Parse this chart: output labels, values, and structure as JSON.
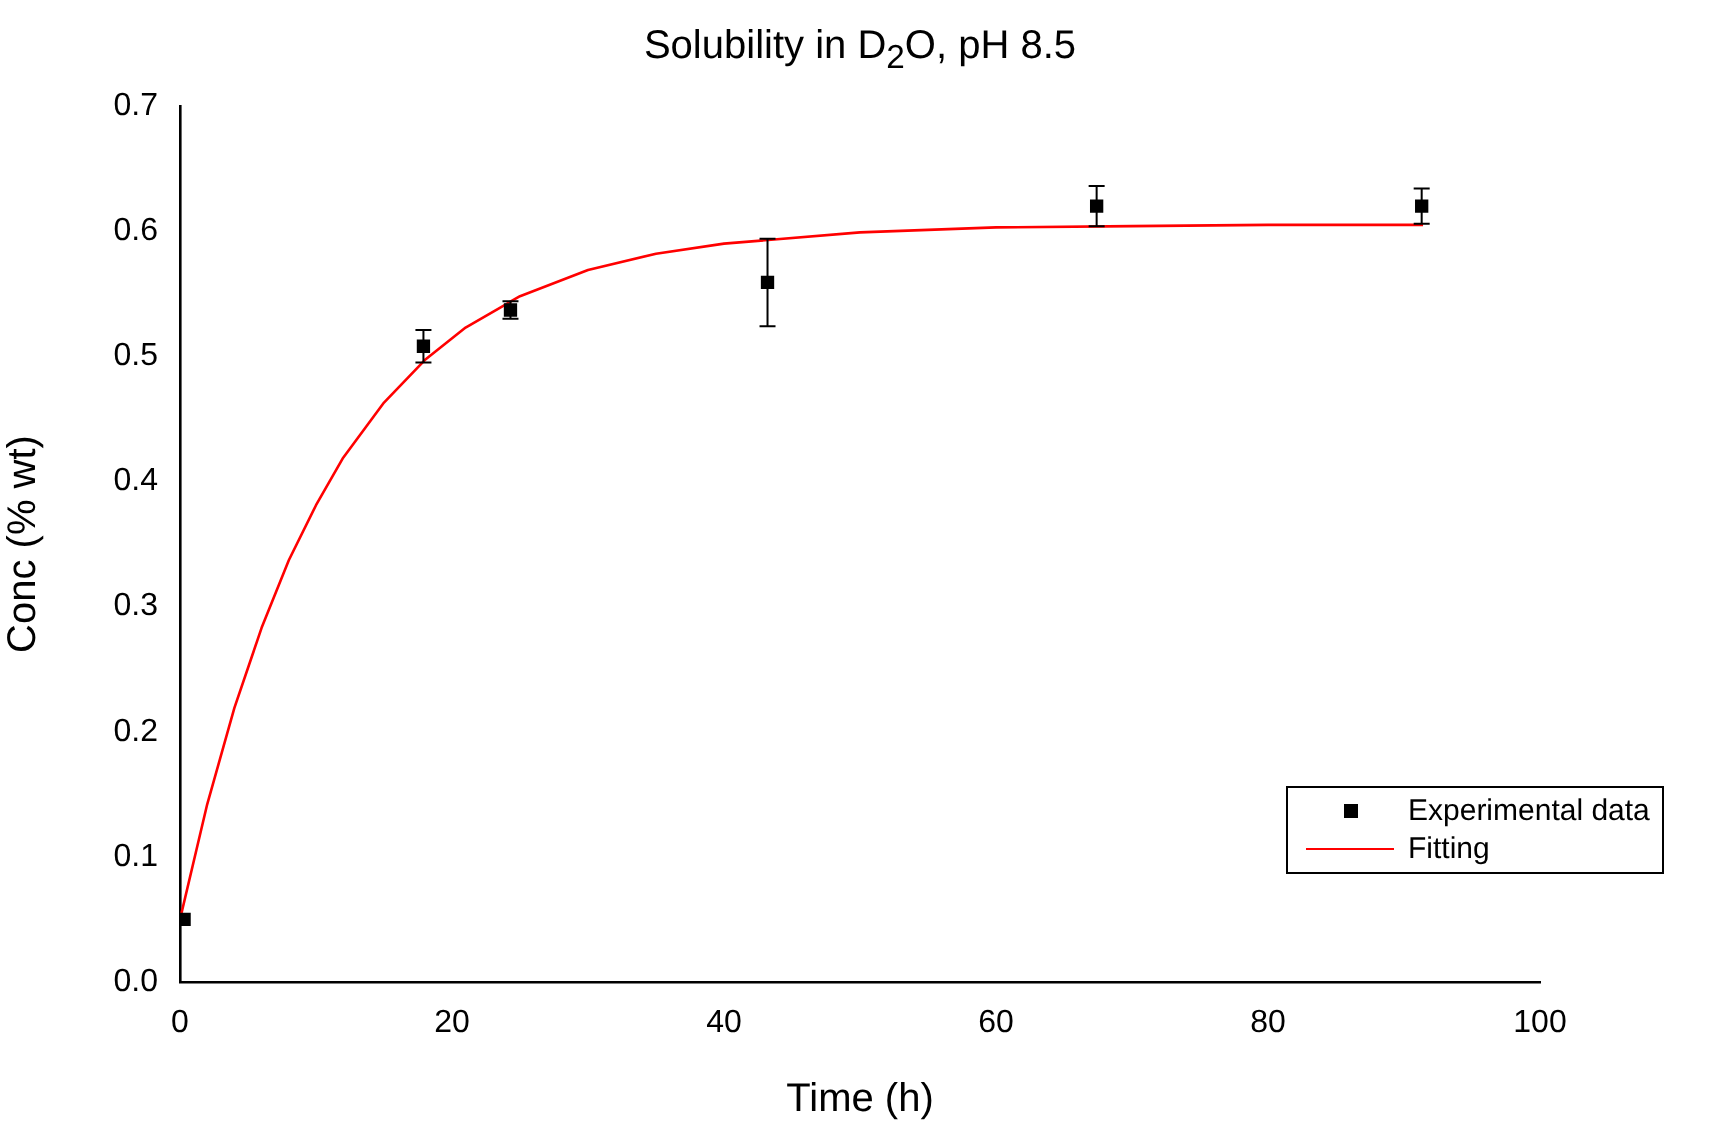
{
  "chart_data": {
    "type": "scatter",
    "title": "Solubility in D$_{2}$O, pH 8.5",
    "xlabel": "Time (h)",
    "ylabel": "Conc (% wt)",
    "xlim": [
      0,
      100
    ],
    "xticks": [
      0,
      20,
      40,
      60,
      80,
      100
    ],
    "ylim": [
      0,
      0.7
    ],
    "yticks": [
      {
        "value": 0,
        "label": "0.0"
      },
      0.1,
      0.2,
      0.3,
      0.4,
      0.5,
      0.6,
      0.7
    ],
    "grid": false,
    "legend": "bottom right",
    "series": [
      {
        "name": "Experimental data",
        "marker": "square",
        "color": "#000000",
        "x": [
          0.3,
          17.9,
          24.3,
          43.2,
          67.4,
          91.3
        ],
        "values": [
          0.05,
          0.508,
          0.537,
          0.559,
          0.62,
          0.62
        ],
        "errors": [
          null,
          0.013,
          0.007,
          0.035,
          0.016,
          0.014
        ]
      },
      {
        "name": "Fitting",
        "type": "line",
        "marker": "none",
        "color": "#ff0000",
        "x": [
          0,
          2,
          4,
          6,
          8,
          10,
          12,
          15,
          18,
          21,
          25,
          30,
          35,
          40,
          50,
          60,
          70,
          80,
          91.4
        ],
        "values": [
          0.05,
          0.142,
          0.219,
          0.283,
          0.337,
          0.381,
          0.419,
          0.463,
          0.497,
          0.523,
          0.548,
          0.569,
          0.582,
          0.59,
          0.599,
          0.603,
          0.604,
          0.605,
          0.605
        ]
      }
    ]
  }
}
